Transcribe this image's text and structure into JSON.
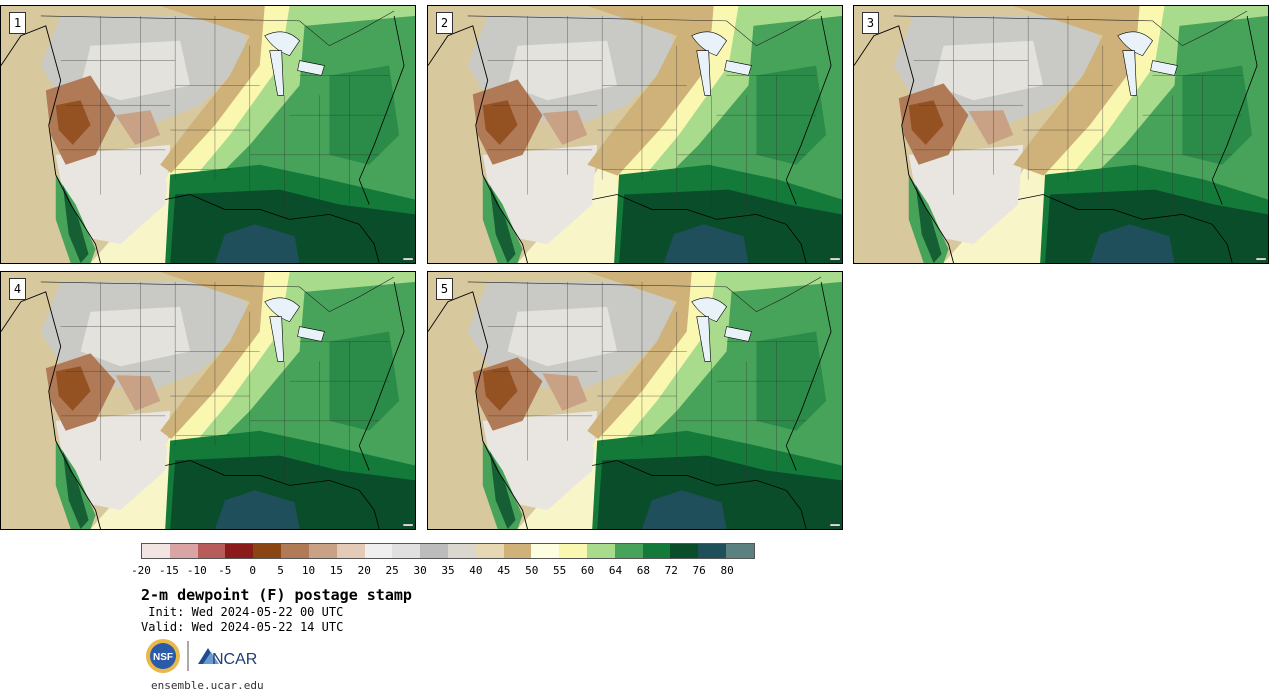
{
  "stamps": [
    {
      "label": "1",
      "variant": 0
    },
    {
      "label": "2",
      "variant": 1
    },
    {
      "label": "3",
      "variant": 2
    },
    {
      "label": "4",
      "variant": 3
    },
    {
      "label": "5",
      "variant": 4
    }
  ],
  "colorbar": {
    "colors": [
      "#f3e4e4",
      "#d8a4a4",
      "#b85b5b",
      "#8b1a1a",
      "#8b4513",
      "#b07a56",
      "#c9a185",
      "#e3cbb7",
      "#efefef",
      "#e0e0e0",
      "#bcbcbc",
      "#d9d7ce",
      "#e6d8b2",
      "#cfb27a",
      "#fdfde0",
      "#f9f7b0",
      "#a8dc8c",
      "#48a35a",
      "#137a3a",
      "#0a4d2a",
      "#1e4f5a",
      "#5a8080"
    ],
    "ticks": [
      "-20",
      "-15",
      "-10",
      "-5",
      "0",
      "5",
      "10",
      "15",
      "20",
      "25",
      "30",
      "35",
      "40",
      "45",
      "50",
      "55",
      "60",
      "64",
      "68",
      "72",
      "76",
      "80"
    ]
  },
  "title": "2-m dewpoint (F) postage stamp",
  "init_text": " Init: Wed 2024-05-22 00 UTC",
  "valid_text": "Valid: Wed 2024-05-22 14 UTC",
  "logos": {
    "nsf": "NSF",
    "ncar": "NCAR"
  },
  "site": "ensemble.ucar.edu"
}
